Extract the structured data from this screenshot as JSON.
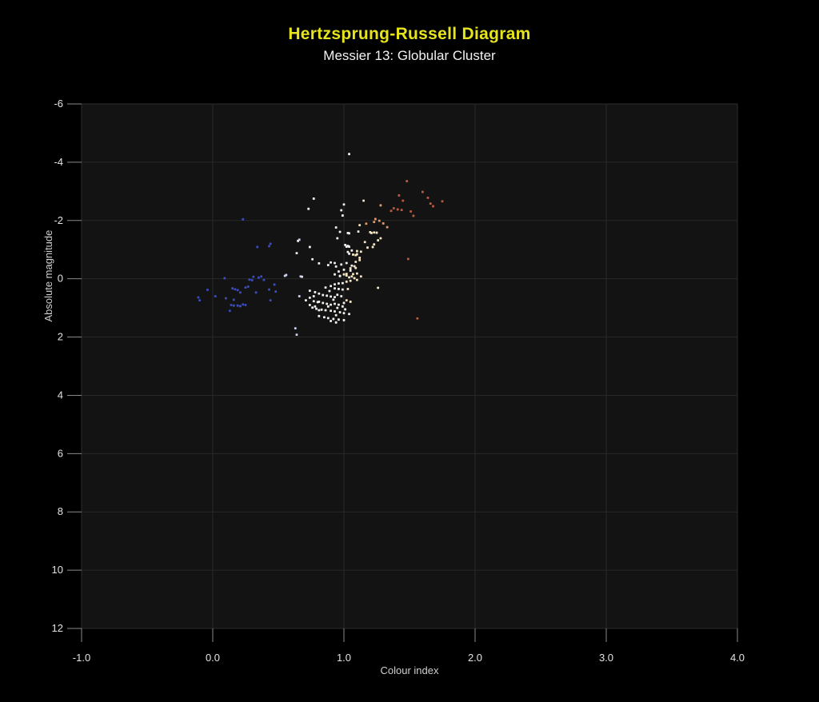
{
  "chart": {
    "title": "Hertzsprung-Russell Diagram",
    "subtitle": "Messier 13: Globular Cluster",
    "xlabel": "Colour index",
    "ylabel": "Absolute magnitude"
  },
  "colors": {
    "page_bg": "#000000",
    "plot_bg": "#131313",
    "grid": "#282828",
    "border": "#2e2e2e",
    "tick": "#8a8a8a",
    "tick_label": "#e3e3e3",
    "axis_label": "#cfcfcf",
    "title": "#e6e41c",
    "subtitle": "#f2f2f2"
  },
  "chart_data": {
    "type": "scatter",
    "title": "Hertzsprung-Russell Diagram",
    "subtitle": "Messier 13: Globular Cluster",
    "xlabel": "Colour index",
    "ylabel": "Absolute magnitude",
    "xlim": [
      -1.0,
      4.0
    ],
    "ylim": [
      12,
      -6
    ],
    "y_axis_inverted": true,
    "grid": true,
    "legend": "none",
    "x_tick_values": [
      -1.0,
      0.0,
      1.0,
      2.0,
      3.0,
      4.0
    ],
    "x_tick_labels": [
      "-1.0",
      "0.0",
      "1.0",
      "2.0",
      "3.0",
      "4.0"
    ],
    "y_tick_values": [
      -6,
      -4,
      -2,
      0,
      2,
      4,
      6,
      8,
      10,
      12
    ],
    "y_tick_labels": [
      "-6",
      "-4",
      "-2",
      "0",
      "2",
      "4",
      "6",
      "8",
      "10",
      "12"
    ],
    "point_colors": {
      "b": "#3a4cc0",
      "lb": "#c9d2f2",
      "w": "#f1f0ec",
      "c": "#f5e5c2",
      "o": "#dd9a72",
      "r": "#bb5a44"
    },
    "points": [
      [
        1.48,
        -3.35,
        "r"
      ],
      [
        1.6,
        -2.98,
        "r"
      ],
      [
        1.42,
        -2.86,
        "r"
      ],
      [
        1.64,
        -2.78,
        "r"
      ],
      [
        1.45,
        -2.68,
        "r"
      ],
      [
        1.75,
        -2.66,
        "r"
      ],
      [
        1.66,
        -2.58,
        "r"
      ],
      [
        1.68,
        -2.49,
        "r"
      ],
      [
        1.38,
        -2.42,
        "r"
      ],
      [
        1.41,
        -2.38,
        "r"
      ],
      [
        1.44,
        -2.36,
        "r"
      ],
      [
        1.36,
        -2.33,
        "r"
      ],
      [
        1.51,
        -2.31,
        "r"
      ],
      [
        1.53,
        -2.16,
        "r"
      ],
      [
        1.49,
        -0.68,
        "r"
      ],
      [
        1.56,
        1.36,
        "r"
      ],
      [
        1.28,
        -2.52,
        "o"
      ],
      [
        1.24,
        -2.05,
        "o"
      ],
      [
        1.27,
        -1.99,
        "o"
      ],
      [
        1.3,
        -1.9,
        "o"
      ],
      [
        1.33,
        -1.77,
        "o"
      ],
      [
        1.23,
        -1.95,
        "o"
      ],
      [
        1.17,
        -1.89,
        "o"
      ],
      [
        1.15,
        -2.68,
        "c"
      ],
      [
        1.12,
        -1.84,
        "c"
      ],
      [
        1.2,
        -1.6,
        "c"
      ],
      [
        1.23,
        -1.59,
        "c"
      ],
      [
        1.25,
        -1.58,
        "c"
      ],
      [
        1.21,
        -1.57,
        "c"
      ],
      [
        1.28,
        -1.39,
        "c"
      ],
      [
        1.16,
        -1.26,
        "c"
      ],
      [
        1.26,
        -1.32,
        "c"
      ],
      [
        1.22,
        -1.09,
        "c"
      ],
      [
        1.18,
        -1.07,
        "c"
      ],
      [
        1.23,
        -1.18,
        "c"
      ],
      [
        1.13,
        -0.93,
        "c"
      ],
      [
        1.1,
        -0.95,
        "c"
      ],
      [
        1.07,
        -0.83,
        "c"
      ],
      [
        1.1,
        -0.84,
        "c"
      ],
      [
        1.12,
        -0.72,
        "c"
      ],
      [
        1.09,
        -0.58,
        "c"
      ],
      [
        1.12,
        -0.64,
        "c"
      ],
      [
        1.09,
        -0.81,
        "c"
      ],
      [
        1.08,
        -0.43,
        "c"
      ],
      [
        1.09,
        -0.37,
        "c"
      ],
      [
        1.05,
        -0.36,
        "c"
      ],
      [
        1.1,
        -0.18,
        "c"
      ],
      [
        1.13,
        -0.08,
        "c"
      ],
      [
        1.07,
        -0.16,
        "c"
      ],
      [
        1.02,
        -0.17,
        "c"
      ],
      [
        1.26,
        0.31,
        "c"
      ],
      [
        1.04,
        -4.28,
        "w"
      ],
      [
        0.77,
        -2.75,
        "w"
      ],
      [
        0.73,
        -2.4,
        "w"
      ],
      [
        1.0,
        -2.55,
        "w"
      ],
      [
        0.98,
        -2.35,
        "w"
      ],
      [
        0.99,
        -2.17,
        "w"
      ],
      [
        0.94,
        -1.76,
        "w"
      ],
      [
        0.97,
        -1.61,
        "w"
      ],
      [
        1.04,
        -1.56,
        "w"
      ],
      [
        1.11,
        -1.62,
        "w"
      ],
      [
        1.03,
        -1.57,
        "w"
      ],
      [
        0.95,
        -1.39,
        "w"
      ],
      [
        1.01,
        -1.16,
        "w"
      ],
      [
        1.03,
        -1.13,
        "w"
      ],
      [
        1.04,
        -1.1,
        "w"
      ],
      [
        1.02,
        -1.1,
        "w"
      ],
      [
        1.06,
        -0.97,
        "w"
      ],
      [
        1.03,
        -0.92,
        "w"
      ],
      [
        1.04,
        -0.86,
        "w"
      ],
      [
        0.9,
        -0.56,
        "w"
      ],
      [
        0.93,
        -0.54,
        "w"
      ],
      [
        0.98,
        -0.49,
        "w"
      ],
      [
        1.02,
        -0.54,
        "w"
      ],
      [
        1.06,
        -0.45,
        "w"
      ],
      [
        1.05,
        -0.28,
        "w"
      ],
      [
        1.0,
        -0.31,
        "w"
      ],
      [
        0.96,
        -0.25,
        "w"
      ],
      [
        0.97,
        -0.1,
        "w"
      ],
      [
        0.65,
        -1.3,
        "w"
      ],
      [
        0.66,
        -1.34,
        "lb"
      ],
      [
        0.74,
        -1.09,
        "w"
      ],
      [
        0.64,
        -0.88,
        "w"
      ],
      [
        0.76,
        -0.67,
        "w"
      ],
      [
        0.81,
        -0.53,
        "w"
      ],
      [
        0.88,
        -0.47,
        "w"
      ],
      [
        0.94,
        -0.42,
        "w"
      ],
      [
        0.56,
        -0.13,
        "lb"
      ],
      [
        0.68,
        -0.07,
        "w"
      ],
      [
        0.55,
        -0.1,
        "lb"
      ],
      [
        0.67,
        -0.08,
        "lb"
      ],
      [
        0.23,
        -2.04,
        "b"
      ],
      [
        0.43,
        -1.12,
        "b"
      ],
      [
        0.34,
        -1.09,
        "b"
      ],
      [
        0.44,
        -1.2,
        "b"
      ],
      [
        0.31,
        -0.07,
        "b"
      ],
      [
        0.35,
        -0.04,
        "b"
      ],
      [
        -0.11,
        0.64,
        "b"
      ],
      [
        -0.1,
        0.74,
        "b"
      ],
      [
        -0.04,
        0.38,
        "b"
      ],
      [
        0.02,
        0.6,
        "b"
      ],
      [
        0.09,
        -0.02,
        "b"
      ],
      [
        0.1,
        0.67,
        "b"
      ],
      [
        0.15,
        0.33,
        "b"
      ],
      [
        0.17,
        0.36,
        "b"
      ],
      [
        0.19,
        0.39,
        "b"
      ],
      [
        0.21,
        0.47,
        "b"
      ],
      [
        0.16,
        0.72,
        "b"
      ],
      [
        0.14,
        0.9,
        "b"
      ],
      [
        0.16,
        0.92,
        "b"
      ],
      [
        0.19,
        0.92,
        "b"
      ],
      [
        0.13,
        1.1,
        "b"
      ],
      [
        0.21,
        0.94,
        "b"
      ],
      [
        0.23,
        0.88,
        "b"
      ],
      [
        0.25,
        0.9,
        "b"
      ],
      [
        0.25,
        0.3,
        "b"
      ],
      [
        0.27,
        0.27,
        "b"
      ],
      [
        0.28,
        0.03,
        "b"
      ],
      [
        0.3,
        0.05,
        "b"
      ],
      [
        0.37,
        -0.08,
        "b"
      ],
      [
        0.39,
        0.04,
        "b"
      ],
      [
        0.33,
        0.47,
        "b"
      ],
      [
        0.43,
        0.37,
        "b"
      ],
      [
        0.44,
        0.74,
        "b"
      ],
      [
        0.48,
        0.44,
        "b"
      ],
      [
        0.47,
        0.2,
        "b"
      ],
      [
        0.74,
        0.41,
        "w"
      ],
      [
        0.77,
        0.6,
        "w"
      ],
      [
        0.66,
        0.6,
        "lb"
      ],
      [
        0.8,
        0.8,
        "w"
      ],
      [
        0.74,
        0.9,
        "w"
      ],
      [
        0.78,
        0.95,
        "w"
      ],
      [
        0.81,
        1.08,
        "w"
      ],
      [
        0.63,
        1.7,
        "lb"
      ],
      [
        0.64,
        1.92,
        "lb"
      ],
      [
        0.93,
        -0.15,
        "w"
      ],
      [
        0.97,
        -0.09,
        "w"
      ],
      [
        1.0,
        -0.15,
        "c"
      ],
      [
        1.02,
        -0.11,
        "c"
      ],
      [
        1.04,
        -0.05,
        "c"
      ],
      [
        1.06,
        -0.08,
        "c"
      ],
      [
        1.08,
        -0.02,
        "c"
      ],
      [
        1.1,
        0.04,
        "c"
      ],
      [
        1.05,
        0.07,
        "c"
      ],
      [
        1.02,
        0.1,
        "c"
      ],
      [
        0.99,
        0.15,
        "w"
      ],
      [
        0.96,
        0.16,
        "w"
      ],
      [
        0.93,
        0.19,
        "w"
      ],
      [
        0.9,
        0.25,
        "w"
      ],
      [
        0.93,
        0.33,
        "w"
      ],
      [
        0.96,
        0.35,
        "w"
      ],
      [
        0.99,
        0.37,
        "w"
      ],
      [
        1.03,
        0.35,
        "c"
      ],
      [
        0.78,
        0.46,
        "w"
      ],
      [
        0.81,
        0.51,
        "w"
      ],
      [
        0.84,
        0.56,
        "w"
      ],
      [
        0.87,
        0.58,
        "w"
      ],
      [
        0.9,
        0.61,
        "w"
      ],
      [
        0.93,
        0.63,
        "w"
      ],
      [
        0.74,
        0.65,
        "w"
      ],
      [
        0.71,
        0.74,
        "w"
      ],
      [
        0.77,
        0.77,
        "w"
      ],
      [
        0.81,
        0.79,
        "w"
      ],
      [
        0.84,
        0.83,
        "w"
      ],
      [
        0.87,
        0.86,
        "w"
      ],
      [
        0.9,
        0.89,
        "w"
      ],
      [
        0.93,
        0.86,
        "w"
      ],
      [
        0.96,
        0.89,
        "w"
      ],
      [
        1.0,
        0.83,
        "w"
      ],
      [
        1.02,
        0.74,
        "c"
      ],
      [
        1.05,
        0.79,
        "c"
      ],
      [
        0.76,
        0.99,
        "w"
      ],
      [
        0.79,
        1.03,
        "w"
      ],
      [
        0.83,
        1.06,
        "w"
      ],
      [
        0.86,
        1.08,
        "w"
      ],
      [
        0.9,
        1.1,
        "w"
      ],
      [
        0.93,
        1.12,
        "w"
      ],
      [
        0.97,
        1.15,
        "w"
      ],
      [
        1.0,
        1.18,
        "w"
      ],
      [
        1.04,
        1.21,
        "w"
      ],
      [
        0.81,
        1.28,
        "w"
      ],
      [
        0.85,
        1.32,
        "w"
      ],
      [
        0.88,
        1.35,
        "w"
      ],
      [
        0.92,
        1.38,
        "w"
      ],
      [
        0.96,
        1.4,
        "w"
      ],
      [
        1.0,
        1.42,
        "w"
      ],
      [
        0.86,
        0.3,
        "w"
      ],
      [
        0.89,
        0.42,
        "w"
      ],
      [
        0.95,
        0.55,
        "w"
      ],
      [
        0.98,
        0.6,
        "w"
      ],
      [
        0.92,
        0.72,
        "w"
      ],
      [
        0.88,
        0.95,
        "w"
      ],
      [
        0.95,
        1.0,
        "w"
      ],
      [
        0.99,
        0.95,
        "w"
      ],
      [
        1.01,
        1.05,
        "w"
      ],
      [
        0.94,
        1.25,
        "w"
      ],
      [
        0.9,
        1.45,
        "w"
      ],
      [
        0.94,
        1.5,
        "w"
      ]
    ]
  }
}
